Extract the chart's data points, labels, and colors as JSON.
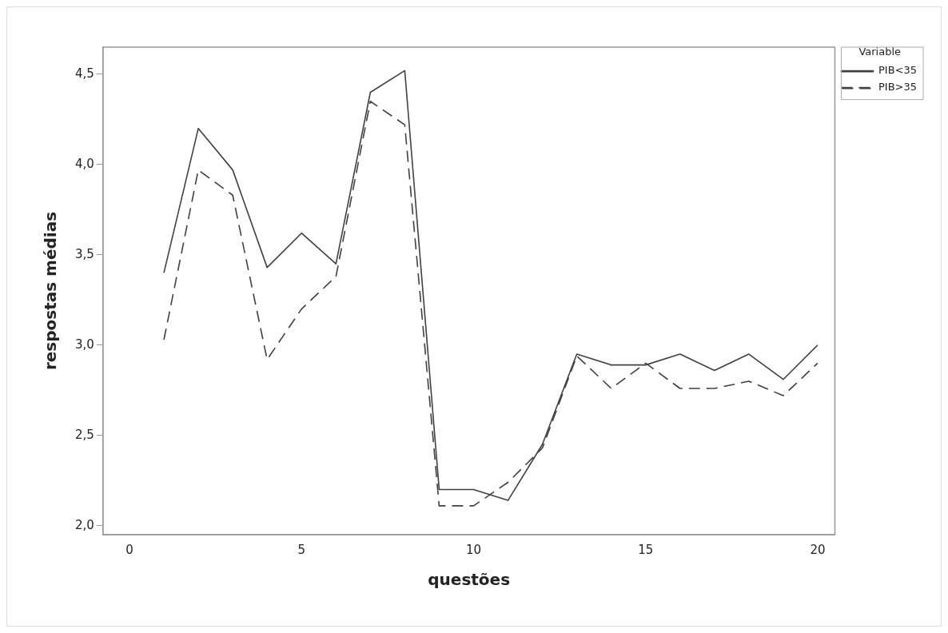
{
  "chart_data": {
    "type": "line",
    "xlabel": "questões",
    "ylabel": "respostas médias",
    "legend_title": "Variable",
    "legend": "top right",
    "grid": false,
    "marker": "none",
    "x": [
      1,
      2,
      3,
      4,
      5,
      6,
      7,
      8,
      9,
      10,
      11,
      12,
      13,
      14,
      15,
      16,
      17,
      18,
      19,
      20
    ],
    "xlim": [
      -0.77,
      20.5
    ],
    "xticks": [
      0,
      5,
      10,
      15,
      20
    ],
    "ylim": [
      1.95,
      4.65
    ],
    "yticks": [
      {
        "value": 2,
        "label": "2,0"
      },
      {
        "value": 2.5,
        "label": "2,5"
      },
      {
        "value": 3,
        "label": "3,0"
      },
      {
        "value": 3.5,
        "label": "3,5"
      },
      {
        "value": 4,
        "label": "4,0"
      },
      {
        "value": 4.5,
        "label": "4,5"
      }
    ],
    "series": [
      {
        "name": "PIB<35",
        "color": "#404040",
        "line_style": "solid",
        "values": [
          3.4,
          4.2,
          3.97,
          3.43,
          3.62,
          3.45,
          4.4,
          4.52,
          2.2,
          2.2,
          2.14,
          2.45,
          2.95,
          2.89,
          2.89,
          2.95,
          2.86,
          2.95,
          2.81,
          3.0
        ]
      },
      {
        "name": "PIB>35",
        "color": "#404040",
        "line_style": "dashed",
        "values": [
          3.03,
          3.97,
          3.83,
          2.92,
          3.2,
          3.38,
          4.35,
          4.22,
          2.11,
          2.11,
          2.24,
          2.43,
          2.94,
          2.76,
          2.9,
          2.76,
          2.76,
          2.8,
          2.72,
          2.9
        ]
      }
    ]
  }
}
